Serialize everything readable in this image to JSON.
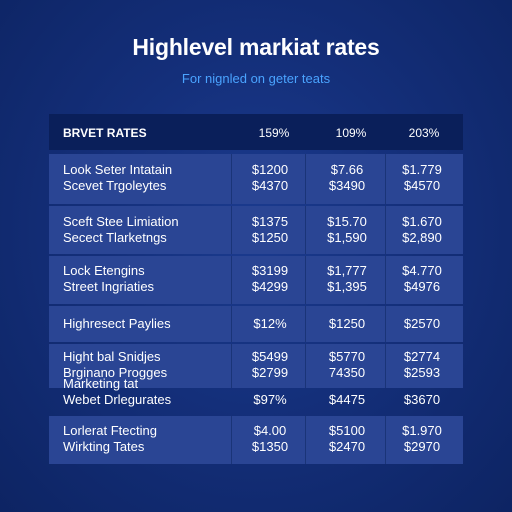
{
  "title": "Highlevel markiat rates",
  "subtitle": "For nignled on geter teats",
  "table": {
    "header": {
      "label": "BRVET RATES",
      "columns": [
        "159%",
        "109%",
        "203%"
      ]
    },
    "groups": [
      {
        "rows": [
          {
            "label": "Look Seter Intatain",
            "values": [
              "$1200",
              "$7.66",
              "$1.779"
            ]
          },
          {
            "label": "Scevet Trgoleytes",
            "values": [
              "$4370",
              "$3490",
              "$4570"
            ]
          }
        ]
      },
      {
        "rows": [
          {
            "label": "Sceft Stee Limiation",
            "values": [
              "$1375",
              "$15.70",
              "$1.670"
            ]
          },
          {
            "label": "Secect Tlarketngs",
            "values": [
              "$1250",
              "$1,590",
              "$2,890"
            ]
          }
        ]
      },
      {
        "rows": [
          {
            "label": "Lock Etengins",
            "values": [
              "$3199",
              "$1,777",
              "$4.770"
            ]
          },
          {
            "label": "Street Ingriaties",
            "values": [
              "$4299",
              "$1,395",
              "$4976"
            ]
          }
        ]
      },
      {
        "rows": [
          {
            "label": "Highresect Paylies",
            "values": [
              "$12%",
              "$1250",
              "$2570"
            ]
          }
        ]
      },
      {
        "rows": [
          {
            "label": "Hight bal Snidjes",
            "values": [
              "$5499",
              "$5770",
              "$2774"
            ]
          },
          {
            "label": "Brginano Progges",
            "values": [
              "$2799",
              "74350",
              "$2593"
            ]
          }
        ]
      },
      {
        "rows": [
          {
            "label": "Marketing tat",
            "values": [
              "",
              "",
              ""
            ]
          },
          {
            "label": "Webet Drlegurates",
            "values": [
              "$97%",
              "$4475",
              "$3670"
            ]
          }
        ]
      },
      {
        "rows": [
          {
            "label": "Lorlerat Ftecting",
            "values": [
              "$4.00",
              "$5100",
              "$1.970"
            ]
          },
          {
            "label": "Wirkting Tates",
            "values": [
              "$1350",
              "$2470",
              "$2970"
            ]
          }
        ]
      }
    ]
  }
}
